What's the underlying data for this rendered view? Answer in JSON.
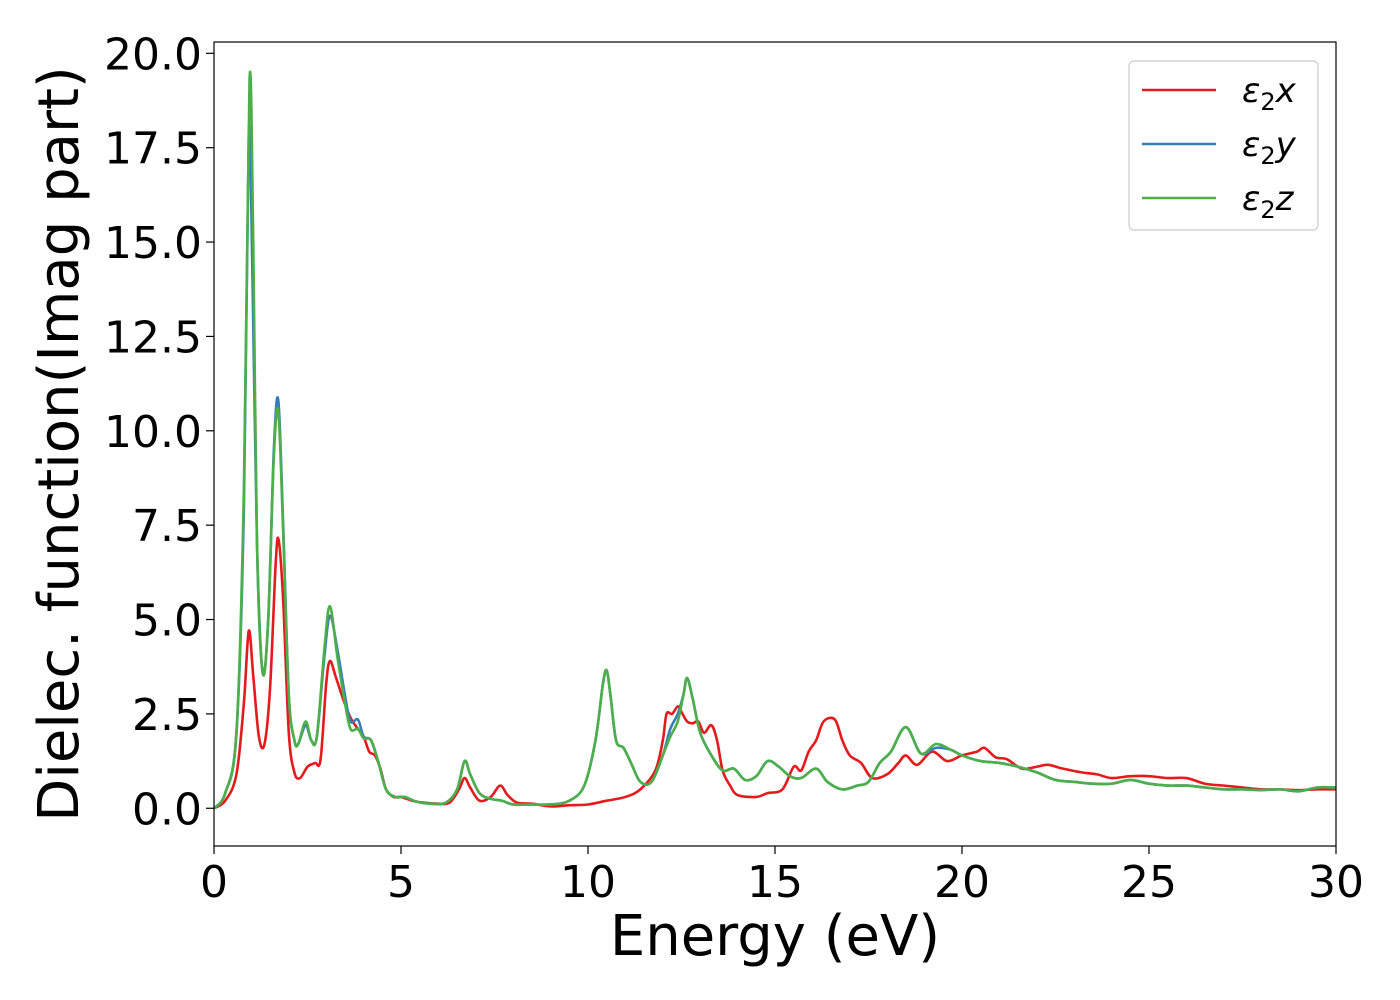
{
  "chart_data": {
    "type": "line",
    "xlabel": "Energy (eV)",
    "ylabel": "Dielec. function(Imag part)",
    "xlim": [
      0,
      30
    ],
    "ylim": [
      -1.0,
      20.3
    ],
    "xticks": [
      0,
      5,
      10,
      15,
      20,
      25,
      30
    ],
    "xtick_labels": [
      "0",
      "5",
      "10",
      "15",
      "20",
      "25",
      "30"
    ],
    "yticks": [
      0.0,
      2.5,
      5.0,
      7.5,
      10.0,
      12.5,
      15.0,
      17.5,
      20.0
    ],
    "ytick_labels": [
      "0.0",
      "2.5",
      "5.0",
      "7.5",
      "10.0",
      "12.5",
      "15.0",
      "17.5",
      "20.0"
    ],
    "grid": false,
    "legend_position": "top-right",
    "series": [
      {
        "name": "ε₂x",
        "legend_base": "ε",
        "legend_sub": "2",
        "legend_suffix": "x",
        "color": "#e41a1c",
        "points": [
          [
            0,
            0.0
          ],
          [
            0.3,
            0.2
          ],
          [
            0.6,
            0.9
          ],
          [
            0.8,
            2.8
          ],
          [
            0.93,
            4.7
          ],
          [
            1.05,
            3.5
          ],
          [
            1.2,
            1.9
          ],
          [
            1.35,
            1.7
          ],
          [
            1.5,
            3.2
          ],
          [
            1.65,
            6.5
          ],
          [
            1.73,
            7.1
          ],
          [
            1.85,
            5.5
          ],
          [
            2.0,
            2.0
          ],
          [
            2.15,
            0.95
          ],
          [
            2.3,
            0.8
          ],
          [
            2.5,
            1.1
          ],
          [
            2.7,
            1.2
          ],
          [
            2.85,
            1.3
          ],
          [
            3.0,
            3.3
          ],
          [
            3.1,
            3.9
          ],
          [
            3.25,
            3.5
          ],
          [
            3.45,
            2.9
          ],
          [
            3.65,
            2.4
          ],
          [
            3.85,
            2.1
          ],
          [
            4.0,
            1.9
          ],
          [
            4.15,
            1.5
          ],
          [
            4.3,
            1.4
          ],
          [
            4.45,
            1.05
          ],
          [
            4.6,
            0.5
          ],
          [
            4.8,
            0.3
          ],
          [
            5.0,
            0.3
          ],
          [
            5.3,
            0.2
          ],
          [
            5.6,
            0.15
          ],
          [
            6.0,
            0.12
          ],
          [
            6.3,
            0.15
          ],
          [
            6.55,
            0.5
          ],
          [
            6.7,
            0.8
          ],
          [
            6.85,
            0.55
          ],
          [
            7.1,
            0.2
          ],
          [
            7.4,
            0.3
          ],
          [
            7.65,
            0.6
          ],
          [
            7.85,
            0.35
          ],
          [
            8.1,
            0.15
          ],
          [
            8.5,
            0.12
          ],
          [
            9.0,
            0.05
          ],
          [
            9.5,
            0.08
          ],
          [
            10.0,
            0.1
          ],
          [
            10.5,
            0.2
          ],
          [
            11.0,
            0.3
          ],
          [
            11.4,
            0.5
          ],
          [
            11.8,
            1.0
          ],
          [
            12.0,
            1.8
          ],
          [
            12.1,
            2.5
          ],
          [
            12.25,
            2.5
          ],
          [
            12.4,
            2.7
          ],
          [
            12.5,
            2.55
          ],
          [
            12.65,
            2.3
          ],
          [
            12.8,
            2.25
          ],
          [
            12.95,
            2.3
          ],
          [
            13.1,
            2.0
          ],
          [
            13.3,
            2.2
          ],
          [
            13.45,
            1.8
          ],
          [
            13.6,
            1.0
          ],
          [
            13.8,
            0.6
          ],
          [
            14.0,
            0.35
          ],
          [
            14.5,
            0.3
          ],
          [
            14.8,
            0.4
          ],
          [
            15.2,
            0.5
          ],
          [
            15.5,
            1.1
          ],
          [
            15.7,
            1.0
          ],
          [
            15.9,
            1.5
          ],
          [
            16.1,
            1.8
          ],
          [
            16.3,
            2.3
          ],
          [
            16.6,
            2.35
          ],
          [
            16.8,
            1.8
          ],
          [
            17.0,
            1.4
          ],
          [
            17.3,
            1.2
          ],
          [
            17.6,
            0.8
          ],
          [
            18.0,
            0.9
          ],
          [
            18.3,
            1.2
          ],
          [
            18.5,
            1.4
          ],
          [
            18.8,
            1.15
          ],
          [
            19.2,
            1.5
          ],
          [
            19.6,
            1.25
          ],
          [
            20.0,
            1.4
          ],
          [
            20.4,
            1.5
          ],
          [
            20.6,
            1.6
          ],
          [
            20.9,
            1.35
          ],
          [
            21.2,
            1.3
          ],
          [
            21.6,
            1.05
          ],
          [
            22.0,
            1.1
          ],
          [
            22.3,
            1.15
          ],
          [
            22.7,
            1.05
          ],
          [
            23.2,
            0.95
          ],
          [
            23.6,
            0.9
          ],
          [
            24.0,
            0.8
          ],
          [
            24.5,
            0.85
          ],
          [
            25.0,
            0.85
          ],
          [
            25.5,
            0.8
          ],
          [
            26.0,
            0.8
          ],
          [
            26.5,
            0.65
          ],
          [
            27.0,
            0.6
          ],
          [
            27.5,
            0.55
          ],
          [
            28.0,
            0.5
          ],
          [
            28.5,
            0.5
          ],
          [
            29.0,
            0.48
          ],
          [
            29.5,
            0.5
          ],
          [
            30.0,
            0.5
          ]
        ]
      },
      {
        "name": "ε₂y",
        "legend_base": "ε",
        "legend_sub": "2",
        "legend_suffix": "y",
        "color": "#377eb8",
        "points": [
          [
            0,
            0.0
          ],
          [
            0.3,
            0.4
          ],
          [
            0.6,
            2.0
          ],
          [
            0.8,
            8.0
          ],
          [
            0.93,
            17.9
          ],
          [
            1.03,
            14.0
          ],
          [
            1.15,
            7.0
          ],
          [
            1.3,
            3.6
          ],
          [
            1.45,
            5.0
          ],
          [
            1.6,
            9.5
          ],
          [
            1.72,
            10.8
          ],
          [
            1.85,
            7.5
          ],
          [
            2.0,
            3.0
          ],
          [
            2.15,
            1.8
          ],
          [
            2.25,
            1.7
          ],
          [
            2.45,
            2.2
          ],
          [
            2.6,
            1.8
          ],
          [
            2.75,
            1.9
          ],
          [
            2.95,
            4.0
          ],
          [
            3.1,
            5.1
          ],
          [
            3.3,
            4.2
          ],
          [
            3.5,
            3.0
          ],
          [
            3.65,
            2.3
          ],
          [
            3.85,
            2.35
          ],
          [
            4.0,
            1.9
          ],
          [
            4.2,
            1.8
          ],
          [
            4.4,
            1.2
          ],
          [
            4.6,
            0.5
          ],
          [
            4.85,
            0.3
          ],
          [
            5.1,
            0.3
          ],
          [
            5.4,
            0.18
          ],
          [
            5.8,
            0.12
          ],
          [
            6.2,
            0.15
          ],
          [
            6.5,
            0.5
          ],
          [
            6.7,
            1.25
          ],
          [
            6.85,
            0.9
          ],
          [
            7.1,
            0.4
          ],
          [
            7.4,
            0.25
          ],
          [
            7.7,
            0.2
          ],
          [
            8.0,
            0.1
          ],
          [
            8.5,
            0.1
          ],
          [
            9.0,
            0.1
          ],
          [
            9.5,
            0.2
          ],
          [
            9.9,
            0.6
          ],
          [
            10.2,
            1.8
          ],
          [
            10.4,
            3.3
          ],
          [
            10.5,
            3.65
          ],
          [
            10.6,
            3.0
          ],
          [
            10.75,
            1.8
          ],
          [
            10.95,
            1.6
          ],
          [
            11.15,
            1.2
          ],
          [
            11.4,
            0.7
          ],
          [
            11.7,
            0.7
          ],
          [
            12.0,
            1.4
          ],
          [
            12.2,
            2.1
          ],
          [
            12.4,
            2.5
          ],
          [
            12.55,
            3.0
          ],
          [
            12.65,
            3.45
          ],
          [
            12.8,
            2.9
          ],
          [
            13.0,
            2.0
          ],
          [
            13.3,
            1.4
          ],
          [
            13.6,
            1.0
          ],
          [
            13.9,
            1.05
          ],
          [
            14.2,
            0.75
          ],
          [
            14.5,
            0.85
          ],
          [
            14.8,
            1.25
          ],
          [
            15.1,
            1.1
          ],
          [
            15.4,
            0.85
          ],
          [
            15.7,
            0.8
          ],
          [
            16.1,
            1.05
          ],
          [
            16.4,
            0.7
          ],
          [
            16.8,
            0.5
          ],
          [
            17.2,
            0.6
          ],
          [
            17.5,
            0.7
          ],
          [
            17.8,
            1.2
          ],
          [
            18.1,
            1.5
          ],
          [
            18.5,
            2.15
          ],
          [
            18.9,
            1.45
          ],
          [
            19.3,
            1.6
          ],
          [
            19.7,
            1.55
          ],
          [
            20.0,
            1.4
          ],
          [
            20.5,
            1.25
          ],
          [
            21.0,
            1.2
          ],
          [
            21.5,
            1.1
          ],
          [
            22.0,
            0.95
          ],
          [
            22.5,
            0.75
          ],
          [
            23.0,
            0.7
          ],
          [
            23.5,
            0.65
          ],
          [
            24.0,
            0.65
          ],
          [
            24.5,
            0.75
          ],
          [
            25.0,
            0.65
          ],
          [
            25.5,
            0.6
          ],
          [
            26.0,
            0.6
          ],
          [
            26.5,
            0.55
          ],
          [
            27.0,
            0.5
          ],
          [
            27.5,
            0.5
          ],
          [
            28.0,
            0.48
          ],
          [
            28.5,
            0.5
          ],
          [
            29.0,
            0.45
          ],
          [
            29.5,
            0.55
          ],
          [
            30.0,
            0.55
          ]
        ]
      },
      {
        "name": "ε₂z",
        "legend_base": "ε",
        "legend_sub": "2",
        "legend_suffix": "z",
        "color": "#4daf4a",
        "points": [
          [
            0,
            0.0
          ],
          [
            0.3,
            0.4
          ],
          [
            0.6,
            2.0
          ],
          [
            0.8,
            8.5
          ],
          [
            0.95,
            19.3
          ],
          [
            1.05,
            15.0
          ],
          [
            1.15,
            7.0
          ],
          [
            1.3,
            3.6
          ],
          [
            1.45,
            5.0
          ],
          [
            1.6,
            9.3
          ],
          [
            1.72,
            10.5
          ],
          [
            1.85,
            7.3
          ],
          [
            2.0,
            3.0
          ],
          [
            2.15,
            1.8
          ],
          [
            2.25,
            1.7
          ],
          [
            2.45,
            2.3
          ],
          [
            2.6,
            1.8
          ],
          [
            2.75,
            1.9
          ],
          [
            2.95,
            4.2
          ],
          [
            3.1,
            5.35
          ],
          [
            3.3,
            4.0
          ],
          [
            3.5,
            2.8
          ],
          [
            3.65,
            2.1
          ],
          [
            3.85,
            2.1
          ],
          [
            4.0,
            1.85
          ],
          [
            4.2,
            1.8
          ],
          [
            4.4,
            1.2
          ],
          [
            4.6,
            0.5
          ],
          [
            4.85,
            0.3
          ],
          [
            5.1,
            0.3
          ],
          [
            5.4,
            0.18
          ],
          [
            5.8,
            0.12
          ],
          [
            6.2,
            0.15
          ],
          [
            6.5,
            0.5
          ],
          [
            6.7,
            1.25
          ],
          [
            6.85,
            0.9
          ],
          [
            7.1,
            0.4
          ],
          [
            7.4,
            0.25
          ],
          [
            7.7,
            0.2
          ],
          [
            8.0,
            0.1
          ],
          [
            8.5,
            0.1
          ],
          [
            9.0,
            0.1
          ],
          [
            9.5,
            0.2
          ],
          [
            9.9,
            0.6
          ],
          [
            10.2,
            1.8
          ],
          [
            10.4,
            3.3
          ],
          [
            10.5,
            3.65
          ],
          [
            10.6,
            3.0
          ],
          [
            10.75,
            1.8
          ],
          [
            10.95,
            1.6
          ],
          [
            11.15,
            1.2
          ],
          [
            11.4,
            0.7
          ],
          [
            11.7,
            0.7
          ],
          [
            12.0,
            1.4
          ],
          [
            12.2,
            1.9
          ],
          [
            12.4,
            2.3
          ],
          [
            12.55,
            3.0
          ],
          [
            12.65,
            3.45
          ],
          [
            12.8,
            2.9
          ],
          [
            13.0,
            2.0
          ],
          [
            13.3,
            1.4
          ],
          [
            13.6,
            1.0
          ],
          [
            13.9,
            1.05
          ],
          [
            14.2,
            0.75
          ],
          [
            14.5,
            0.85
          ],
          [
            14.8,
            1.25
          ],
          [
            15.1,
            1.1
          ],
          [
            15.4,
            0.85
          ],
          [
            15.7,
            0.8
          ],
          [
            16.1,
            1.05
          ],
          [
            16.4,
            0.7
          ],
          [
            16.8,
            0.5
          ],
          [
            17.2,
            0.6
          ],
          [
            17.5,
            0.7
          ],
          [
            17.8,
            1.2
          ],
          [
            18.1,
            1.5
          ],
          [
            18.5,
            2.15
          ],
          [
            18.9,
            1.45
          ],
          [
            19.3,
            1.7
          ],
          [
            19.7,
            1.55
          ],
          [
            20.0,
            1.4
          ],
          [
            20.5,
            1.25
          ],
          [
            21.0,
            1.2
          ],
          [
            21.5,
            1.1
          ],
          [
            22.0,
            0.95
          ],
          [
            22.5,
            0.75
          ],
          [
            23.0,
            0.7
          ],
          [
            23.5,
            0.65
          ],
          [
            24.0,
            0.65
          ],
          [
            24.5,
            0.75
          ],
          [
            25.0,
            0.65
          ],
          [
            25.5,
            0.6
          ],
          [
            26.0,
            0.6
          ],
          [
            26.5,
            0.55
          ],
          [
            27.0,
            0.5
          ],
          [
            27.5,
            0.5
          ],
          [
            28.0,
            0.48
          ],
          [
            28.5,
            0.5
          ],
          [
            29.0,
            0.45
          ],
          [
            29.5,
            0.55
          ],
          [
            30.0,
            0.55
          ]
        ]
      }
    ]
  }
}
